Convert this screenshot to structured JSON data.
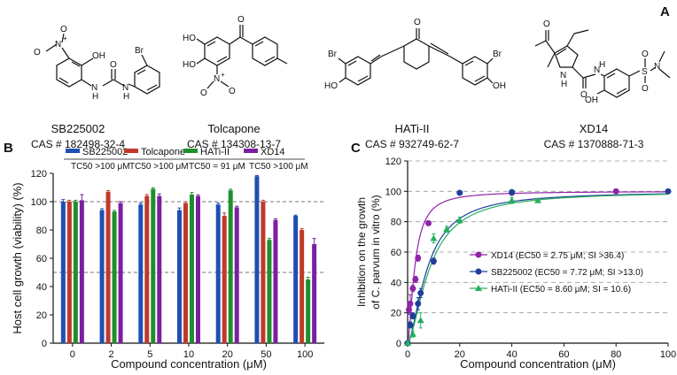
{
  "panel_a": {
    "label": "A",
    "compounds": [
      {
        "name": "SB225002",
        "cas": "CAS # 182498-32-4",
        "atoms": [
          "OH",
          "O",
          "N",
          "+",
          "O",
          "Br",
          "N",
          "H",
          "N",
          "H",
          "O"
        ]
      },
      {
        "name": "Tolcapone",
        "cas": "CAS # 134308-13-7",
        "atoms": [
          "O",
          "HO",
          "HO",
          "N",
          "+",
          "O",
          "O"
        ]
      },
      {
        "name": "HATi-II",
        "cas": "CAS # 932749-62-7",
        "atoms": [
          "O",
          "Br",
          "Br",
          "HO",
          "OH"
        ]
      },
      {
        "name": "XD14",
        "cas": "CAS # 1370888-71-3",
        "atoms": [
          "O",
          "N",
          "H",
          "N",
          "H",
          "O",
          "OH",
          "S",
          "O",
          "O",
          "N"
        ]
      }
    ]
  },
  "chart_data": [
    {
      "type": "bar",
      "panel_label": "B",
      "xlabel": "Compound concentration (μM)",
      "ylabel": "Host cell growth (viability) (%)",
      "categories": [
        "0",
        "2",
        "5",
        "10",
        "20",
        "50",
        "100"
      ],
      "ylim": [
        0,
        120
      ],
      "yticks": [
        "0",
        "20",
        "40",
        "60",
        "80",
        "100",
        "120"
      ],
      "reference_lines": [
        100,
        50
      ],
      "legend_position": "top",
      "series": [
        {
          "name": "SB225002",
          "tc50": "TC50 >100 μM",
          "color": "#1f4fb5",
          "values": [
            100,
            94,
            98,
            94,
            98,
            118,
            90
          ],
          "errors": [
            1.5,
            1,
            1,
            1.5,
            1,
            0.5,
            0.5
          ]
        },
        {
          "name": "Tolcapone",
          "tc50": "TC50 >100 μM",
          "color": "#c0392b",
          "values": [
            100,
            107,
            104,
            99,
            90,
            100,
            80
          ],
          "errors": [
            1,
            0.8,
            1,
            1,
            2,
            1,
            1
          ]
        },
        {
          "name": "HATi-II",
          "tc50": "TC50 = 91 μM",
          "color": "#1f8f2b",
          "values": [
            100,
            93,
            109,
            105,
            108,
            73,
            45
          ],
          "errors": [
            1,
            0.8,
            0.8,
            1.5,
            0.8,
            1,
            1.5
          ]
        },
        {
          "name": "XD14",
          "tc50": "TC50 >100 μM",
          "color": "#7b1fa2",
          "values": [
            101,
            99,
            104,
            104,
            96,
            87,
            70
          ],
          "errors": [
            4,
            1,
            1.5,
            0.8,
            0.8,
            0.8,
            4
          ]
        }
      ]
    },
    {
      "type": "scatter",
      "panel_label": "C",
      "xlabel": "Compound concentration (μM)",
      "ylabel_line1": "Inhibition on the growth",
      "ylabel_line2": "of C. parvum in vitro (%)",
      "ylabel_italic": "C. parvum",
      "xlim": [
        0,
        100
      ],
      "ylim": [
        0,
        120
      ],
      "xticks": [
        "0",
        "20",
        "40",
        "60",
        "80",
        "100"
      ],
      "yticks": [
        "0",
        "20",
        "40",
        "60",
        "80",
        "100",
        "120"
      ],
      "legend_position": "center-right",
      "series": [
        {
          "name": "XD14",
          "legend": "XD14 (EC50 = 2.75 μM; SI >36.4)",
          "color": "#8e24aa",
          "marker": "circle",
          "ec50": 2.75,
          "x": [
            0,
            0.5,
            1,
            2,
            3,
            4,
            8,
            40,
            80
          ],
          "y": [
            0,
            22,
            26,
            36,
            42,
            56,
            79,
            99,
            100
          ],
          "err": [
            1,
            3,
            6,
            2,
            2,
            2,
            1,
            1,
            1
          ]
        },
        {
          "name": "SB225002",
          "legend": "SB225002 (EC50 = 7.72 μM; SI >13.0)",
          "color": "#1f3f99",
          "marker": "circle",
          "ec50": 7.72,
          "x": [
            0,
            1,
            2,
            4,
            5,
            10,
            20,
            40,
            100
          ],
          "y": [
            0,
            12,
            18,
            26,
            33,
            54,
            99,
            99.5,
            100
          ],
          "err": [
            1,
            2,
            2,
            4,
            3,
            2,
            1,
            1,
            1
          ]
        },
        {
          "name": "HATi-II",
          "legend": "HATi-II (EC50 = 8.60 μM; SI = 10.6)",
          "color": "#27ae60",
          "marker": "triangle",
          "ec50": 8.6,
          "x": [
            0,
            2,
            5,
            10,
            15,
            20,
            40,
            50
          ],
          "y": [
            0,
            6,
            15,
            69,
            75,
            81,
            94,
            94
          ],
          "err": [
            1,
            2,
            5,
            3,
            2,
            2,
            2,
            1
          ]
        }
      ]
    }
  ]
}
